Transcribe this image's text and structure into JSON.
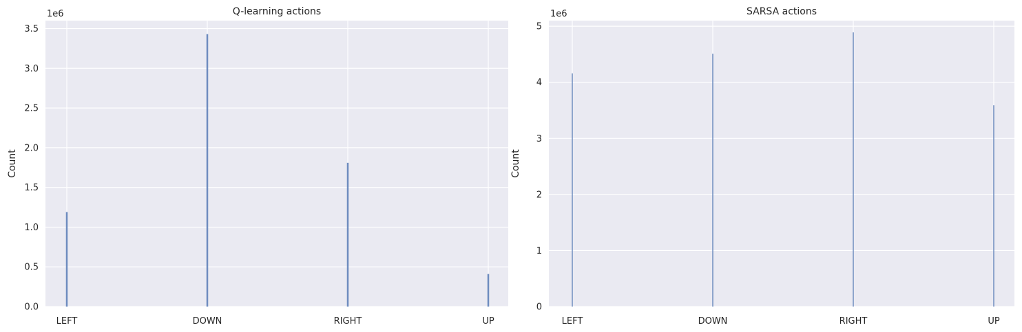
{
  "chart_data": [
    {
      "type": "bar",
      "title": "Q-learning actions",
      "xlabel": "",
      "ylabel": "Count",
      "offset_text": "1e6",
      "categories": [
        "LEFT",
        "DOWN",
        "RIGHT",
        "UP"
      ],
      "values": [
        1.19,
        3.43,
        1.81,
        0.41
      ],
      "value_scale": 1000000,
      "ylim": [
        0,
        3.6
      ],
      "yticks": [
        0,
        0.5,
        1.0,
        1.5,
        2.0,
        2.5,
        3.0,
        3.5
      ],
      "ytick_labels": [
        "0.0",
        "0.5",
        "1.0",
        "1.5",
        "2.0",
        "2.5",
        "3.0",
        "3.5"
      ],
      "grid": true,
      "bar_color": "#4c72b0",
      "background": "#eaeaf2"
    },
    {
      "type": "bar",
      "title": "SARSA actions",
      "xlabel": "",
      "ylabel": "Count",
      "offset_text": "1e6",
      "categories": [
        "LEFT",
        "DOWN",
        "RIGHT",
        "UP"
      ],
      "values": [
        4.16,
        4.51,
        4.89,
        3.59
      ],
      "value_scale": 1000000,
      "ylim": [
        0,
        5.1
      ],
      "yticks": [
        0,
        1,
        2,
        3,
        4,
        5
      ],
      "ytick_labels": [
        "0",
        "1",
        "2",
        "3",
        "4",
        "5"
      ],
      "grid": true,
      "bar_color": "#4c72b0",
      "background": "#eaeaf2"
    }
  ]
}
